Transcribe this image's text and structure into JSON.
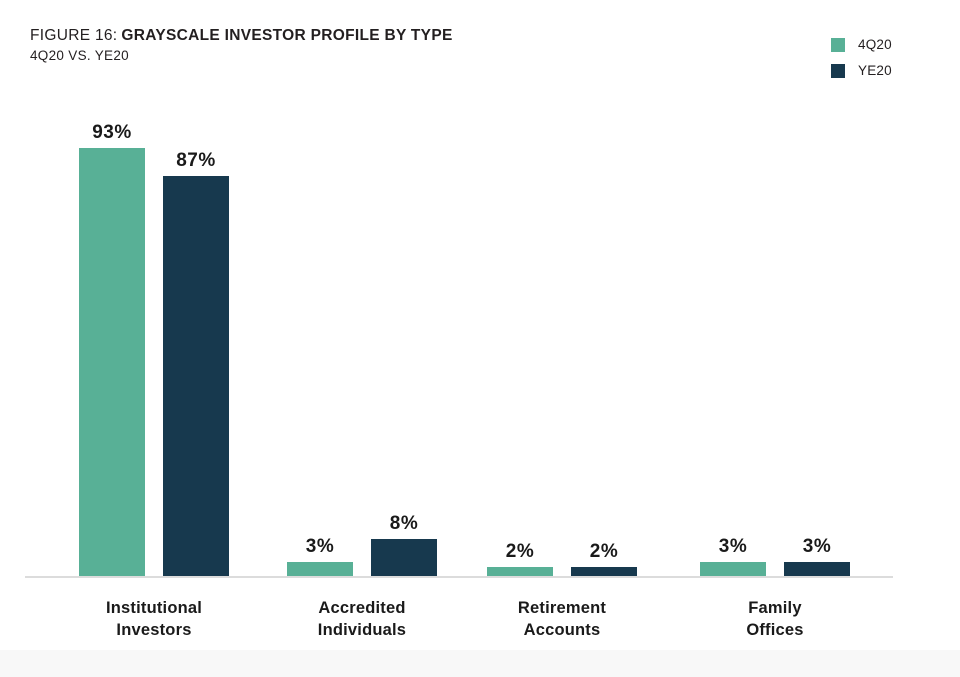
{
  "chart_data": {
    "type": "bar",
    "title_prefix": "FIGURE 16:",
    "title": "GRAYSCALE INVESTOR PROFILE BY TYPE",
    "subtitle": "4Q20 VS. YE20",
    "categories": [
      "Institutional\nInvestors",
      "Accredited\nIndividuals",
      "Retirement\nAccounts",
      "Family\nOffices"
    ],
    "series": [
      {
        "name": "4Q20",
        "color": "#58B096",
        "values": [
          93,
          3,
          2,
          3
        ]
      },
      {
        "name": "YE20",
        "color": "#17394E",
        "values": [
          87,
          8,
          2,
          3
        ]
      }
    ],
    "value_suffix": "%",
    "ylim": [
      0,
      100
    ],
    "grid": false,
    "legend_position": "top-right",
    "colors": {
      "axis_line": "#DCDCDC",
      "text": "#231F20",
      "footer_strip": "#F8F8F8"
    }
  }
}
